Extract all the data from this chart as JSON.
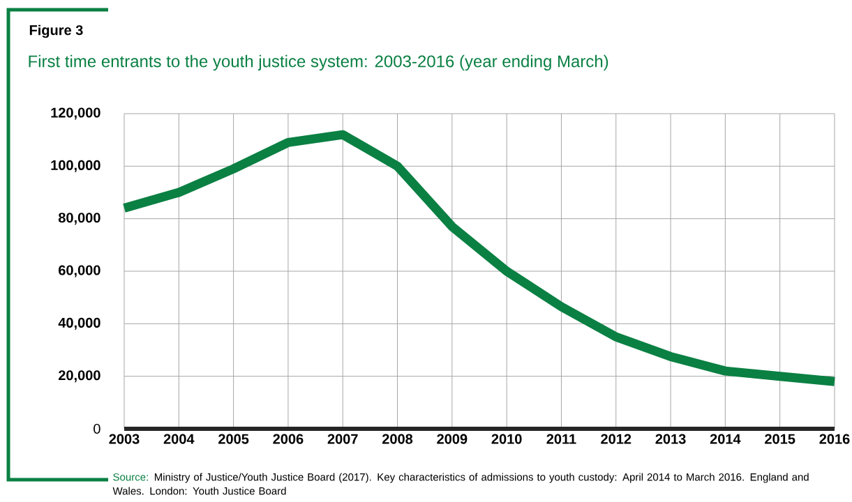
{
  "chart_data": {
    "type": "line",
    "title": "Figure 3",
    "subtitle": "First time entrants to the youth justice system: 2003-2016 (year ending March)",
    "categories": [
      "2003",
      "2004",
      "2005",
      "2006",
      "2007",
      "2008",
      "2009",
      "2010",
      "2011",
      "2012",
      "2013",
      "2014",
      "2015",
      "2016"
    ],
    "values": [
      84000,
      90000,
      99000,
      109000,
      112000,
      100000,
      77000,
      60000,
      46500,
      35000,
      27500,
      22000,
      20000,
      18000
    ],
    "color": "#0a8043",
    "ylim": [
      0,
      120000
    ],
    "yticks": [
      0,
      {
        "value": 20000,
        "label": "20,000"
      },
      {
        "value": 40000,
        "label": "40,000"
      },
      {
        "value": 60000,
        "label": "60,000"
      },
      {
        "value": 80000,
        "label": "80,000"
      },
      {
        "value": 100000,
        "label": "100,000"
      },
      {
        "value": 120000,
        "label": "120,000"
      }
    ],
    "grid": true,
    "marker": "none",
    "line_style": "solid",
    "annotations": [
      "Source:",
      "Ministry of Justice/Youth Justice Board (2017). Key characteristics of admissions to youth custody:  April 2014 to March 2016. England and Wales. London: Youth Justice Board"
    ]
  }
}
